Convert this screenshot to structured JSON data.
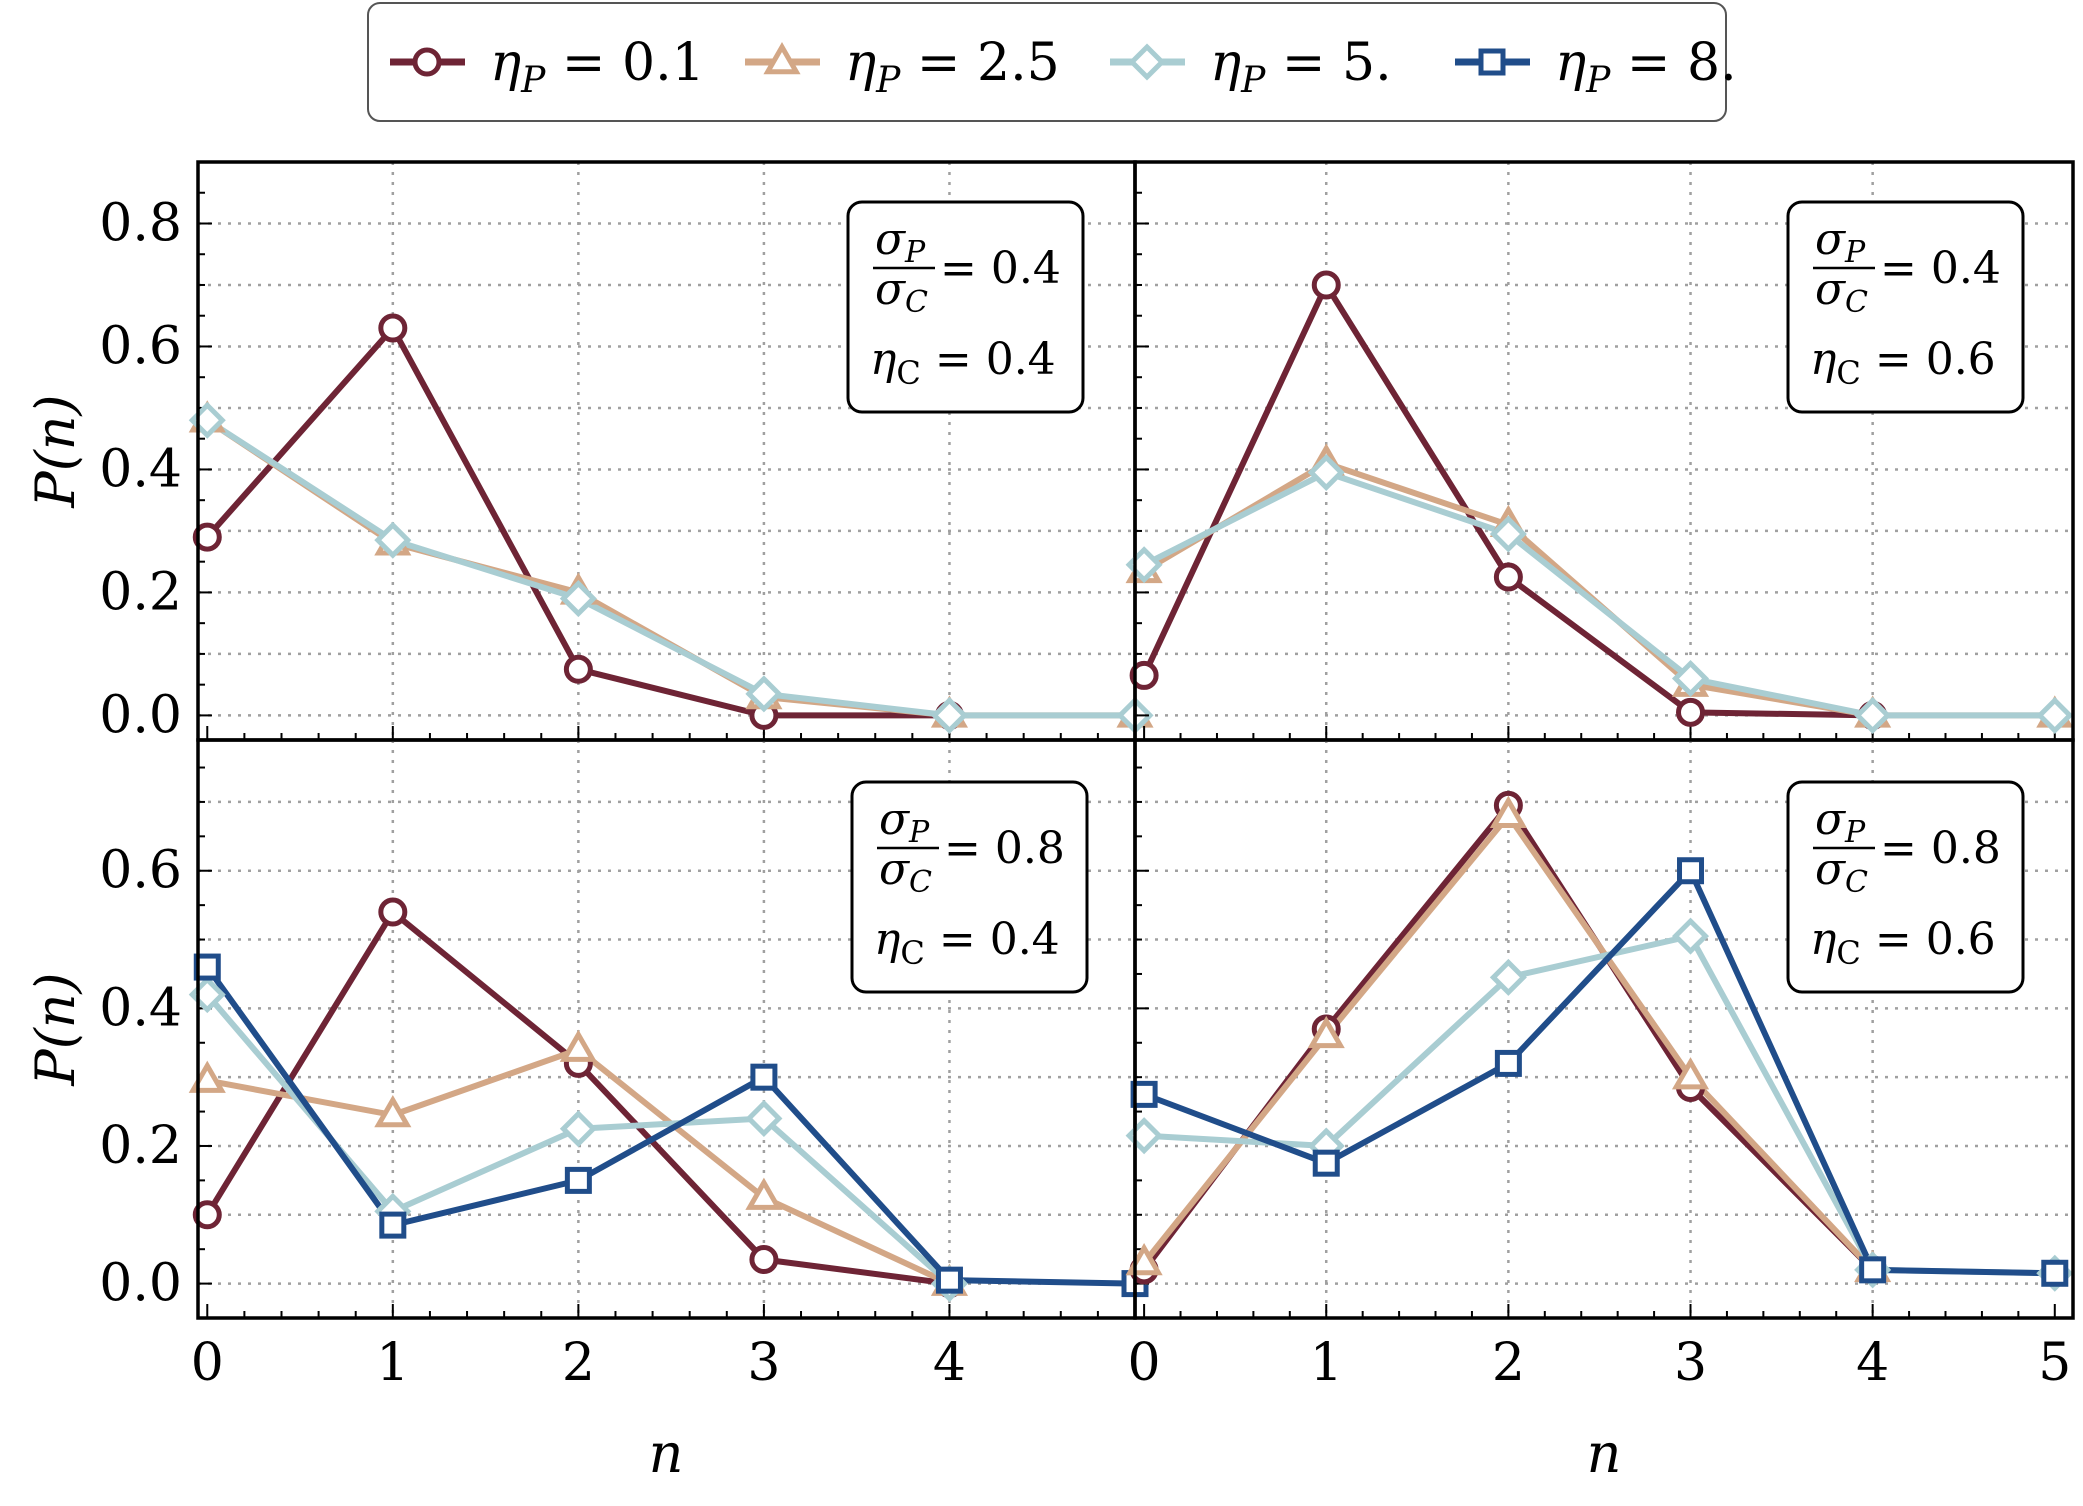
{
  "colors": {
    "series": [
      "#6e2435",
      "#d3a786",
      "#a9cdd2",
      "#204d8a"
    ],
    "grid": "#a0a0a0",
    "frame": "#000000"
  },
  "legend": {
    "placement": "top-center",
    "entries": [
      {
        "symbol": "η",
        "sub": "P",
        "eq": " = 0.1",
        "marker": "circle"
      },
      {
        "symbol": "η",
        "sub": "P",
        "eq": " = 2.5",
        "marker": "triangle"
      },
      {
        "symbol": "η",
        "sub": "P",
        "eq": " = 5.",
        "marker": "diamond"
      },
      {
        "symbol": "η",
        "sub": "P",
        "eq": " = 8.",
        "marker": "square"
      }
    ]
  },
  "axes_labels": {
    "y": "P(n)",
    "x": "n"
  },
  "chart_data": [
    {
      "type": "line",
      "panel": "top-left",
      "xlabel": "",
      "ylabel": "P(n)",
      "xlim": [
        -0.05,
        5
      ],
      "ylim": [
        -0.04,
        0.9
      ],
      "yticks": [
        "0.0",
        "0.2",
        "0.4",
        "0.6",
        "0.8"
      ],
      "xticks": [],
      "annotation": {
        "ratio_num": "σ",
        "ratio_num_sub": "P",
        "ratio_den": "σ",
        "ratio_den_sub": "C",
        "ratio_value": "= 0.4",
        "eta": "η",
        "eta_sub": "C",
        "eta_value": " = 0.4"
      },
      "x": [
        0,
        1,
        2,
        3,
        4,
        5
      ],
      "series": [
        {
          "name": "ηP = 0.1",
          "values": [
            0.29,
            0.63,
            0.075,
            0.0,
            0.0,
            null
          ]
        },
        {
          "name": "ηP = 2.5",
          "values": [
            0.48,
            0.28,
            0.2,
            0.03,
            0.0,
            0.0
          ]
        },
        {
          "name": "ηP = 5.",
          "values": [
            0.48,
            0.285,
            0.19,
            0.035,
            0.0,
            0.0
          ]
        },
        {
          "name": "ηP = 8.",
          "values": [
            null,
            null,
            null,
            null,
            null,
            null
          ]
        }
      ]
    },
    {
      "type": "line",
      "panel": "top-right",
      "xlabel": "",
      "ylabel": "",
      "xlim": [
        -0.05,
        5.1
      ],
      "ylim": [
        -0.04,
        0.9
      ],
      "yticks": [],
      "xticks": [],
      "annotation": {
        "ratio_num": "σ",
        "ratio_num_sub": "P",
        "ratio_den": "σ",
        "ratio_den_sub": "C",
        "ratio_value": "= 0.4",
        "eta": "η",
        "eta_sub": "C",
        "eta_value": " = 0.6"
      },
      "x": [
        0,
        1,
        2,
        3,
        4,
        5
      ],
      "series": [
        {
          "name": "ηP = 0.1",
          "values": [
            0.065,
            0.7,
            0.225,
            0.005,
            0.0,
            null
          ]
        },
        {
          "name": "ηP = 2.5",
          "values": [
            0.235,
            0.41,
            0.31,
            0.05,
            0.0,
            0.0
          ]
        },
        {
          "name": "ηP = 5.",
          "values": [
            0.245,
            0.395,
            0.295,
            0.06,
            0.0,
            0.0
          ]
        },
        {
          "name": "ηP = 8.",
          "values": [
            null,
            null,
            null,
            null,
            null,
            null
          ]
        }
      ]
    },
    {
      "type": "line",
      "panel": "bottom-left",
      "xlabel": "n",
      "ylabel": "P(n)",
      "xlim": [
        -0.05,
        5
      ],
      "ylim": [
        -0.05,
        0.79
      ],
      "yticks": [
        "0.0",
        "0.2",
        "0.4",
        "0.6"
      ],
      "xticks": [
        "0",
        "1",
        "2",
        "3",
        "4"
      ],
      "annotation": {
        "ratio_num": "σ",
        "ratio_num_sub": "P",
        "ratio_den": "σ",
        "ratio_den_sub": "C",
        "ratio_value": "= 0.8",
        "eta": "η",
        "eta_sub": "C",
        "eta_value": " = 0.4"
      },
      "x": [
        0,
        1,
        2,
        3,
        4,
        5
      ],
      "series": [
        {
          "name": "ηP = 0.1",
          "values": [
            0.1,
            0.54,
            0.32,
            0.035,
            0.0,
            null
          ]
        },
        {
          "name": "ηP = 2.5",
          "values": [
            0.295,
            0.245,
            0.34,
            0.125,
            0.0,
            null
          ]
        },
        {
          "name": "ηP = 5.",
          "values": [
            0.42,
            0.105,
            0.225,
            0.24,
            0.0,
            null
          ]
        },
        {
          "name": "ηP = 8.",
          "values": [
            0.46,
            0.085,
            0.15,
            0.3,
            0.005,
            0.0
          ]
        }
      ]
    },
    {
      "type": "line",
      "panel": "bottom-right",
      "xlabel": "n",
      "ylabel": "",
      "xlim": [
        -0.05,
        5.1
      ],
      "ylim": [
        -0.05,
        0.79
      ],
      "yticks": [],
      "xticks": [
        "0",
        "1",
        "2",
        "3",
        "4",
        "5"
      ],
      "annotation": {
        "ratio_num": "σ",
        "ratio_num_sub": "P",
        "ratio_den": "σ",
        "ratio_den_sub": "C",
        "ratio_value": "= 0.8",
        "eta": "η",
        "eta_sub": "C",
        "eta_value": " = 0.6"
      },
      "x": [
        0,
        1,
        2,
        3,
        4,
        5
      ],
      "series": [
        {
          "name": "ηP = 0.1",
          "values": [
            0.02,
            0.37,
            0.695,
            0.285,
            0.02,
            null
          ]
        },
        {
          "name": "ηP = 2.5",
          "values": [
            0.03,
            0.36,
            0.68,
            0.3,
            0.02,
            null
          ]
        },
        {
          "name": "ηP = 5.",
          "values": [
            0.215,
            0.2,
            0.445,
            0.505,
            0.02,
            0.015
          ]
        },
        {
          "name": "ηP = 8.",
          "values": [
            0.275,
            0.175,
            0.32,
            0.6,
            0.02,
            0.015
          ]
        }
      ]
    }
  ]
}
